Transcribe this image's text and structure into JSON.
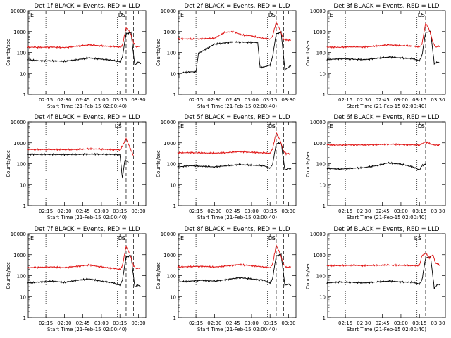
{
  "colors": {
    "events": "#000000",
    "lld": "#e01010",
    "axes": "#000000",
    "background": "#ffffff"
  },
  "chart_data": [
    {
      "type": "line",
      "title": "Det 1f BLACK = Events, RED = LLD",
      "ylabel": "Counts/sec",
      "xlabel": "Start Time (21-Feb-15 02:00:40)",
      "x_tick_labels": [
        "02:15",
        "02:30",
        "02:45",
        "03:00",
        "03:15",
        "03:30"
      ],
      "y_tick_labels": [
        "1",
        "10",
        "100",
        "1000",
        "10000"
      ],
      "y_scale": "log",
      "ylim": [
        1,
        10000
      ],
      "markers": [
        "E",
        "D",
        "S"
      ],
      "series": [
        {
          "key": "events",
          "x": [
            "02:00",
            "02:10",
            "02:20",
            "02:30",
            "02:40",
            "02:50",
            "03:00",
            "03:10",
            "03:15",
            "03:17",
            "03:20",
            "03:24",
            "03:27",
            "03:30",
            "03:32"
          ],
          "values": [
            45,
            40,
            40,
            38,
            45,
            55,
            48,
            42,
            36,
            60,
            800,
            900,
            25,
            35,
            30
          ]
        },
        {
          "key": "lld",
          "x": [
            "02:00",
            "02:10",
            "02:20",
            "02:30",
            "02:40",
            "02:50",
            "03:00",
            "03:10",
            "03:15",
            "03:17",
            "03:20",
            "03:23",
            "03:26",
            "03:28",
            "03:32"
          ],
          "values": [
            180,
            175,
            180,
            170,
            200,
            230,
            205,
            190,
            180,
            220,
            1500,
            1000,
            300,
            180,
            200
          ]
        }
      ]
    },
    {
      "type": "line",
      "title": "Det 2f BLACK = Events, RED = LLD",
      "ylabel": "Counts/sec",
      "xlabel": "Start Time (21-Feb-15 02:00:40)",
      "x_tick_labels": [
        "02:15",
        "02:30",
        "02:45",
        "03:00",
        "03:15",
        "03:30"
      ],
      "y_tick_labels": [
        "1",
        "10",
        "100",
        "1000",
        "10000"
      ],
      "y_scale": "log",
      "ylim": [
        1,
        10000
      ],
      "markers": [
        "E",
        "D",
        "S"
      ],
      "series": [
        {
          "key": "events",
          "x": [
            "02:00",
            "02:10",
            "02:15",
            "02:17",
            "02:30",
            "02:45",
            "03:00",
            "03:05",
            "03:07",
            "03:15",
            "03:17",
            "03:20",
            "03:24",
            "03:27",
            "03:30",
            "03:32"
          ],
          "values": [
            10,
            12,
            12,
            90,
            250,
            320,
            300,
            300,
            18,
            25,
            60,
            800,
            900,
            15,
            20,
            25
          ]
        },
        {
          "key": "lld",
          "x": [
            "02:00",
            "02:15",
            "02:30",
            "02:38",
            "02:45",
            "02:52",
            "03:00",
            "03:07",
            "03:15",
            "03:17",
            "03:20",
            "03:23",
            "03:26",
            "03:28",
            "03:32"
          ],
          "values": [
            450,
            440,
            480,
            900,
            1000,
            700,
            620,
            500,
            430,
            600,
            2800,
            1200,
            420,
            400,
            380
          ]
        }
      ]
    },
    {
      "type": "line",
      "title": "Det 3f BLACK = Events, RED = LLD",
      "ylabel": "Counts/sec",
      "xlabel": "Start Time (21-Feb-15 02:00:40)",
      "x_tick_labels": [
        "02:15",
        "02:30",
        "02:45",
        "03:00",
        "03:15",
        "03:30"
      ],
      "y_tick_labels": [
        "1",
        "10",
        "100",
        "1000",
        "10000"
      ],
      "y_scale": "log",
      "ylim": [
        1,
        10000
      ],
      "markers": [
        "E",
        "D",
        "S"
      ],
      "series": [
        {
          "key": "events",
          "x": [
            "02:00",
            "02:10",
            "02:20",
            "02:30",
            "02:40",
            "02:50",
            "03:00",
            "03:10",
            "03:15",
            "03:17",
            "03:20",
            "03:24",
            "03:27",
            "03:30",
            "03:32"
          ],
          "values": [
            45,
            50,
            48,
            45,
            52,
            60,
            55,
            50,
            40,
            70,
            900,
            1000,
            30,
            35,
            30
          ]
        },
        {
          "key": "lld",
          "x": [
            "02:00",
            "02:10",
            "02:20",
            "02:30",
            "02:40",
            "02:50",
            "03:00",
            "03:10",
            "03:15",
            "03:17",
            "03:20",
            "03:23",
            "03:26",
            "03:28",
            "03:32"
          ],
          "values": [
            180,
            175,
            185,
            180,
            200,
            230,
            210,
            200,
            180,
            250,
            2500,
            1200,
            300,
            180,
            200
          ]
        }
      ]
    },
    {
      "type": "line",
      "title": "Det 4f BLACK = Events, RED = LLD",
      "ylabel": "Counts/sec",
      "xlabel": "Start Time (21-Feb-15 02:00:40)",
      "x_tick_labels": [
        "02:15",
        "02:30",
        "02:45",
        "03:00",
        "03:15",
        "03:30"
      ],
      "y_tick_labels": [
        "1",
        "10",
        "100",
        "1000",
        "10000"
      ],
      "y_scale": "log",
      "ylim": [
        1,
        10000
      ],
      "markers": [
        "L",
        "S"
      ],
      "series": [
        {
          "key": "events",
          "x": [
            "02:00",
            "02:10",
            "02:20",
            "02:30",
            "02:40",
            "02:50",
            "03:00",
            "03:10",
            "03:15",
            "03:17",
            "03:19",
            "03:22"
          ],
          "values": [
            280,
            280,
            280,
            275,
            280,
            290,
            285,
            280,
            270,
            20,
            150,
            120
          ]
        },
        {
          "key": "lld",
          "x": [
            "02:00",
            "02:10",
            "02:20",
            "02:30",
            "02:40",
            "02:50",
            "03:00",
            "03:10",
            "03:15",
            "03:17",
            "03:20",
            "03:23",
            "03:26"
          ],
          "values": [
            480,
            480,
            480,
            475,
            480,
            520,
            500,
            470,
            460,
            700,
            1600,
            600,
            250
          ]
        }
      ]
    },
    {
      "type": "line",
      "title": "Det 5f BLACK = Events, RED = LLD",
      "ylabel": "Counts/sec",
      "xlabel": "Start Time (21-Feb-15 02:00:40)",
      "x_tick_labels": [
        "02:15",
        "02:30",
        "02:45",
        "03:00",
        "03:15",
        "03:30"
      ],
      "y_tick_labels": [
        "1",
        "10",
        "100",
        "1000",
        "10000"
      ],
      "y_scale": "log",
      "ylim": [
        1,
        10000
      ],
      "markers": [
        "E",
        "D",
        "S"
      ],
      "series": [
        {
          "key": "events",
          "x": [
            "02:00",
            "02:10",
            "02:20",
            "02:30",
            "02:40",
            "02:50",
            "03:00",
            "03:10",
            "03:15",
            "03:17",
            "03:20",
            "03:24",
            "03:27",
            "03:30",
            "03:32"
          ],
          "values": [
            70,
            80,
            75,
            70,
            80,
            90,
            85,
            80,
            60,
            90,
            900,
            1000,
            50,
            60,
            55
          ]
        },
        {
          "key": "lld",
          "x": [
            "02:00",
            "02:10",
            "02:20",
            "02:30",
            "02:40",
            "02:50",
            "03:00",
            "03:10",
            "03:15",
            "03:17",
            "03:20",
            "03:23",
            "03:26",
            "03:28",
            "03:32"
          ],
          "values": [
            330,
            340,
            330,
            320,
            340,
            380,
            350,
            330,
            320,
            500,
            3000,
            1400,
            400,
            300,
            300
          ]
        }
      ]
    },
    {
      "type": "line",
      "title": "Det 6f BLACK = Events, RED = LLD",
      "ylabel": "Counts/sec",
      "xlabel": "Start Time (21-Feb-15 02:00:40)",
      "x_tick_labels": [
        "02:15",
        "02:30",
        "02:45",
        "03:00",
        "03:15",
        "03:30"
      ],
      "y_tick_labels": [
        "1",
        "10",
        "100",
        "1000",
        "10000"
      ],
      "y_scale": "log",
      "ylim": [
        1,
        10000
      ],
      "markers": [
        "E",
        "D",
        "S"
      ],
      "series": [
        {
          "key": "events",
          "x": [
            "02:00",
            "02:10",
            "02:20",
            "02:30",
            "02:40",
            "02:50",
            "03:00",
            "03:10",
            "03:15",
            "03:17",
            "03:20"
          ],
          "values": [
            60,
            55,
            60,
            65,
            80,
            110,
            95,
            70,
            50,
            80,
            100
          ]
        },
        {
          "key": "lld",
          "x": [
            "02:00",
            "02:10",
            "02:20",
            "02:30",
            "02:40",
            "02:50",
            "03:00",
            "03:10",
            "03:15",
            "03:17",
            "03:20",
            "03:23",
            "03:26",
            "03:28",
            "03:32"
          ],
          "values": [
            800,
            780,
            800,
            790,
            820,
            860,
            830,
            800,
            780,
            900,
            1100,
            950,
            800,
            780,
            800
          ]
        }
      ]
    },
    {
      "type": "line",
      "title": "Det 7f BLACK = Events, RED = LLD",
      "ylabel": "Counts/sec",
      "xlabel": "Start Time (21-Feb-15 02:00:40)",
      "x_tick_labels": [
        "02:15",
        "02:30",
        "02:45",
        "03:00",
        "03:15",
        "03:30"
      ],
      "y_tick_labels": [
        "1",
        "10",
        "100",
        "1000",
        "10000"
      ],
      "y_scale": "log",
      "ylim": [
        1,
        10000
      ],
      "markers": [
        "E",
        "D",
        "S"
      ],
      "series": [
        {
          "key": "events",
          "x": [
            "02:00",
            "02:10",
            "02:20",
            "02:30",
            "02:40",
            "02:50",
            "03:00",
            "03:10",
            "03:15",
            "03:17",
            "03:20",
            "03:24",
            "03:27",
            "03:30",
            "03:32"
          ],
          "values": [
            45,
            50,
            55,
            48,
            60,
            70,
            55,
            45,
            35,
            60,
            800,
            900,
            30,
            35,
            30
          ]
        },
        {
          "key": "lld",
          "x": [
            "02:00",
            "02:10",
            "02:20",
            "02:30",
            "02:40",
            "02:50",
            "03:00",
            "03:10",
            "03:15",
            "03:17",
            "03:20",
            "03:23",
            "03:26",
            "03:28",
            "03:32"
          ],
          "values": [
            240,
            250,
            260,
            240,
            280,
            320,
            260,
            220,
            200,
            300,
            2500,
            1100,
            300,
            220,
            230
          ]
        }
      ]
    },
    {
      "type": "line",
      "title": "Det 8f BLACK = Events, RED = LLD",
      "ylabel": "Counts/sec",
      "xlabel": "Start Time (21-Feb-15 02:00:40)",
      "x_tick_labels": [
        "02:15",
        "02:30",
        "02:45",
        "03:00",
        "03:15",
        "03:30"
      ],
      "y_tick_labels": [
        "1",
        "10",
        "100",
        "1000",
        "10000"
      ],
      "y_scale": "log",
      "ylim": [
        1,
        10000
      ],
      "markers": [
        "E",
        "D",
        "S"
      ],
      "series": [
        {
          "key": "events",
          "x": [
            "02:00",
            "02:10",
            "02:20",
            "02:30",
            "02:40",
            "02:50",
            "03:00",
            "03:10",
            "03:15",
            "03:17",
            "03:20",
            "03:24",
            "03:27",
            "03:30",
            "03:32"
          ],
          "values": [
            50,
            55,
            60,
            55,
            65,
            80,
            70,
            60,
            45,
            70,
            900,
            1000,
            35,
            40,
            35
          ]
        },
        {
          "key": "lld",
          "x": [
            "02:00",
            "02:10",
            "02:20",
            "02:30",
            "02:40",
            "02:50",
            "03:00",
            "03:10",
            "03:15",
            "03:17",
            "03:20",
            "03:23",
            "03:26",
            "03:28",
            "03:32"
          ],
          "values": [
            260,
            270,
            280,
            260,
            290,
            340,
            300,
            260,
            240,
            350,
            2800,
            1200,
            350,
            250,
            260
          ]
        }
      ]
    },
    {
      "type": "line",
      "title": "Det 9f BLACK = Events, RED = LLD",
      "ylabel": "Counts/sec",
      "xlabel": "Start Time (21-Feb-15 02:00:40)",
      "x_tick_labels": [
        "02:15",
        "02:30",
        "02:45",
        "03:00",
        "03:15",
        "03:30"
      ],
      "y_tick_labels": [
        "1",
        "10",
        "100",
        "1000",
        "10000"
      ],
      "y_scale": "log",
      "ylim": [
        1,
        10000
      ],
      "markers": [
        "L",
        "S"
      ],
      "series": [
        {
          "key": "events",
          "x": [
            "02:00",
            "02:10",
            "02:20",
            "02:30",
            "02:40",
            "02:50",
            "03:00",
            "03:10",
            "03:15",
            "03:17",
            "03:20",
            "03:24",
            "03:27",
            "03:30",
            "03:32"
          ],
          "values": [
            45,
            50,
            48,
            45,
            50,
            55,
            50,
            48,
            40,
            60,
            700,
            800,
            25,
            40,
            35
          ]
        },
        {
          "key": "lld",
          "x": [
            "02:00",
            "02:10",
            "02:20",
            "02:30",
            "02:40",
            "02:50",
            "03:00",
            "03:10",
            "03:15",
            "03:17",
            "03:20",
            "03:23",
            "03:26",
            "03:28",
            "03:32"
          ],
          "values": [
            300,
            300,
            310,
            300,
            310,
            320,
            310,
            300,
            300,
            900,
            1200,
            700,
            1000,
            400,
            300
          ]
        }
      ]
    }
  ]
}
